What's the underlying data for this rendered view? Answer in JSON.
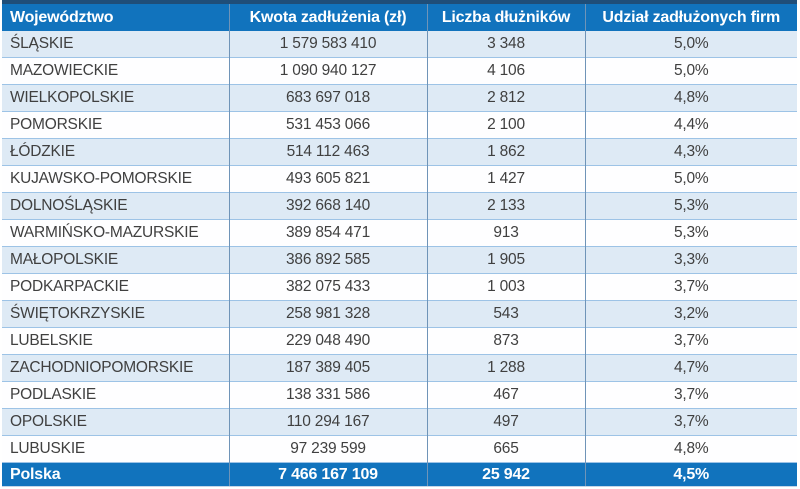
{
  "chart_data": {
    "type": "table",
    "columns": [
      "Województwo",
      "Kwota zadłużenia (zł)",
      "Liczba dłużników",
      "Udział zadłużonych firm"
    ],
    "rows": [
      [
        "ŚLĄSKIE",
        "1 579 583 410",
        "3 348",
        "5,0%"
      ],
      [
        "MAZOWIECKIE",
        "1 090 940 127",
        "4 106",
        "5,0%"
      ],
      [
        "WIELKOPOLSKIE",
        "683 697 018",
        "2 812",
        "4,8%"
      ],
      [
        "POMORSKIE",
        "531 453 066",
        "2 100",
        "4,4%"
      ],
      [
        "ŁÓDZKIE",
        "514 112 463",
        "1 862",
        "4,3%"
      ],
      [
        "KUJAWSKO-POMORSKIE",
        "493 605 821",
        "1 427",
        "5,0%"
      ],
      [
        "DOLNOŚLĄSKIE",
        "392 668 140",
        "2 133",
        "5,3%"
      ],
      [
        "WARMIŃSKO-MAZURSKIE",
        "389 854 471",
        "913",
        "5,3%"
      ],
      [
        "MAŁOPOLSKIE",
        "386 892 585",
        "1 905",
        "3,3%"
      ],
      [
        "PODKARPACKIE",
        "382 075 433",
        "1 003",
        "3,7%"
      ],
      [
        "ŚWIĘTOKRZYSKIE",
        "258 981 328",
        "543",
        "3,2%"
      ],
      [
        "LUBELSKIE",
        "229 048 490",
        "873",
        "3,7%"
      ],
      [
        "ZACHODNIOPOMORSKIE",
        "187 389 405",
        "1 288",
        "4,7%"
      ],
      [
        "PODLASKIE",
        "138 331 586",
        "467",
        "3,7%"
      ],
      [
        "OPOLSKIE",
        "110 294 167",
        "497",
        "3,7%"
      ],
      [
        "LUBUSKIE",
        "97 239 599",
        "665",
        "4,8%"
      ]
    ],
    "footer": [
      "Polska",
      "7 466 167 109",
      "25 942",
      "4,5%"
    ],
    "layout": {
      "grid": true,
      "alternating_rows": true
    }
  },
  "colors": {
    "header_background": "#1173BD",
    "footer_background": "#1173BD",
    "top_border": "#1F4E79",
    "row_alt_background": "#DEEAF5",
    "row_background": "#FEFEFF",
    "vertical_border": "#6F94B8",
    "horizontal_border": "#9DC3E6",
    "header_text": "#FFFFFF",
    "body_text": "#404040"
  }
}
